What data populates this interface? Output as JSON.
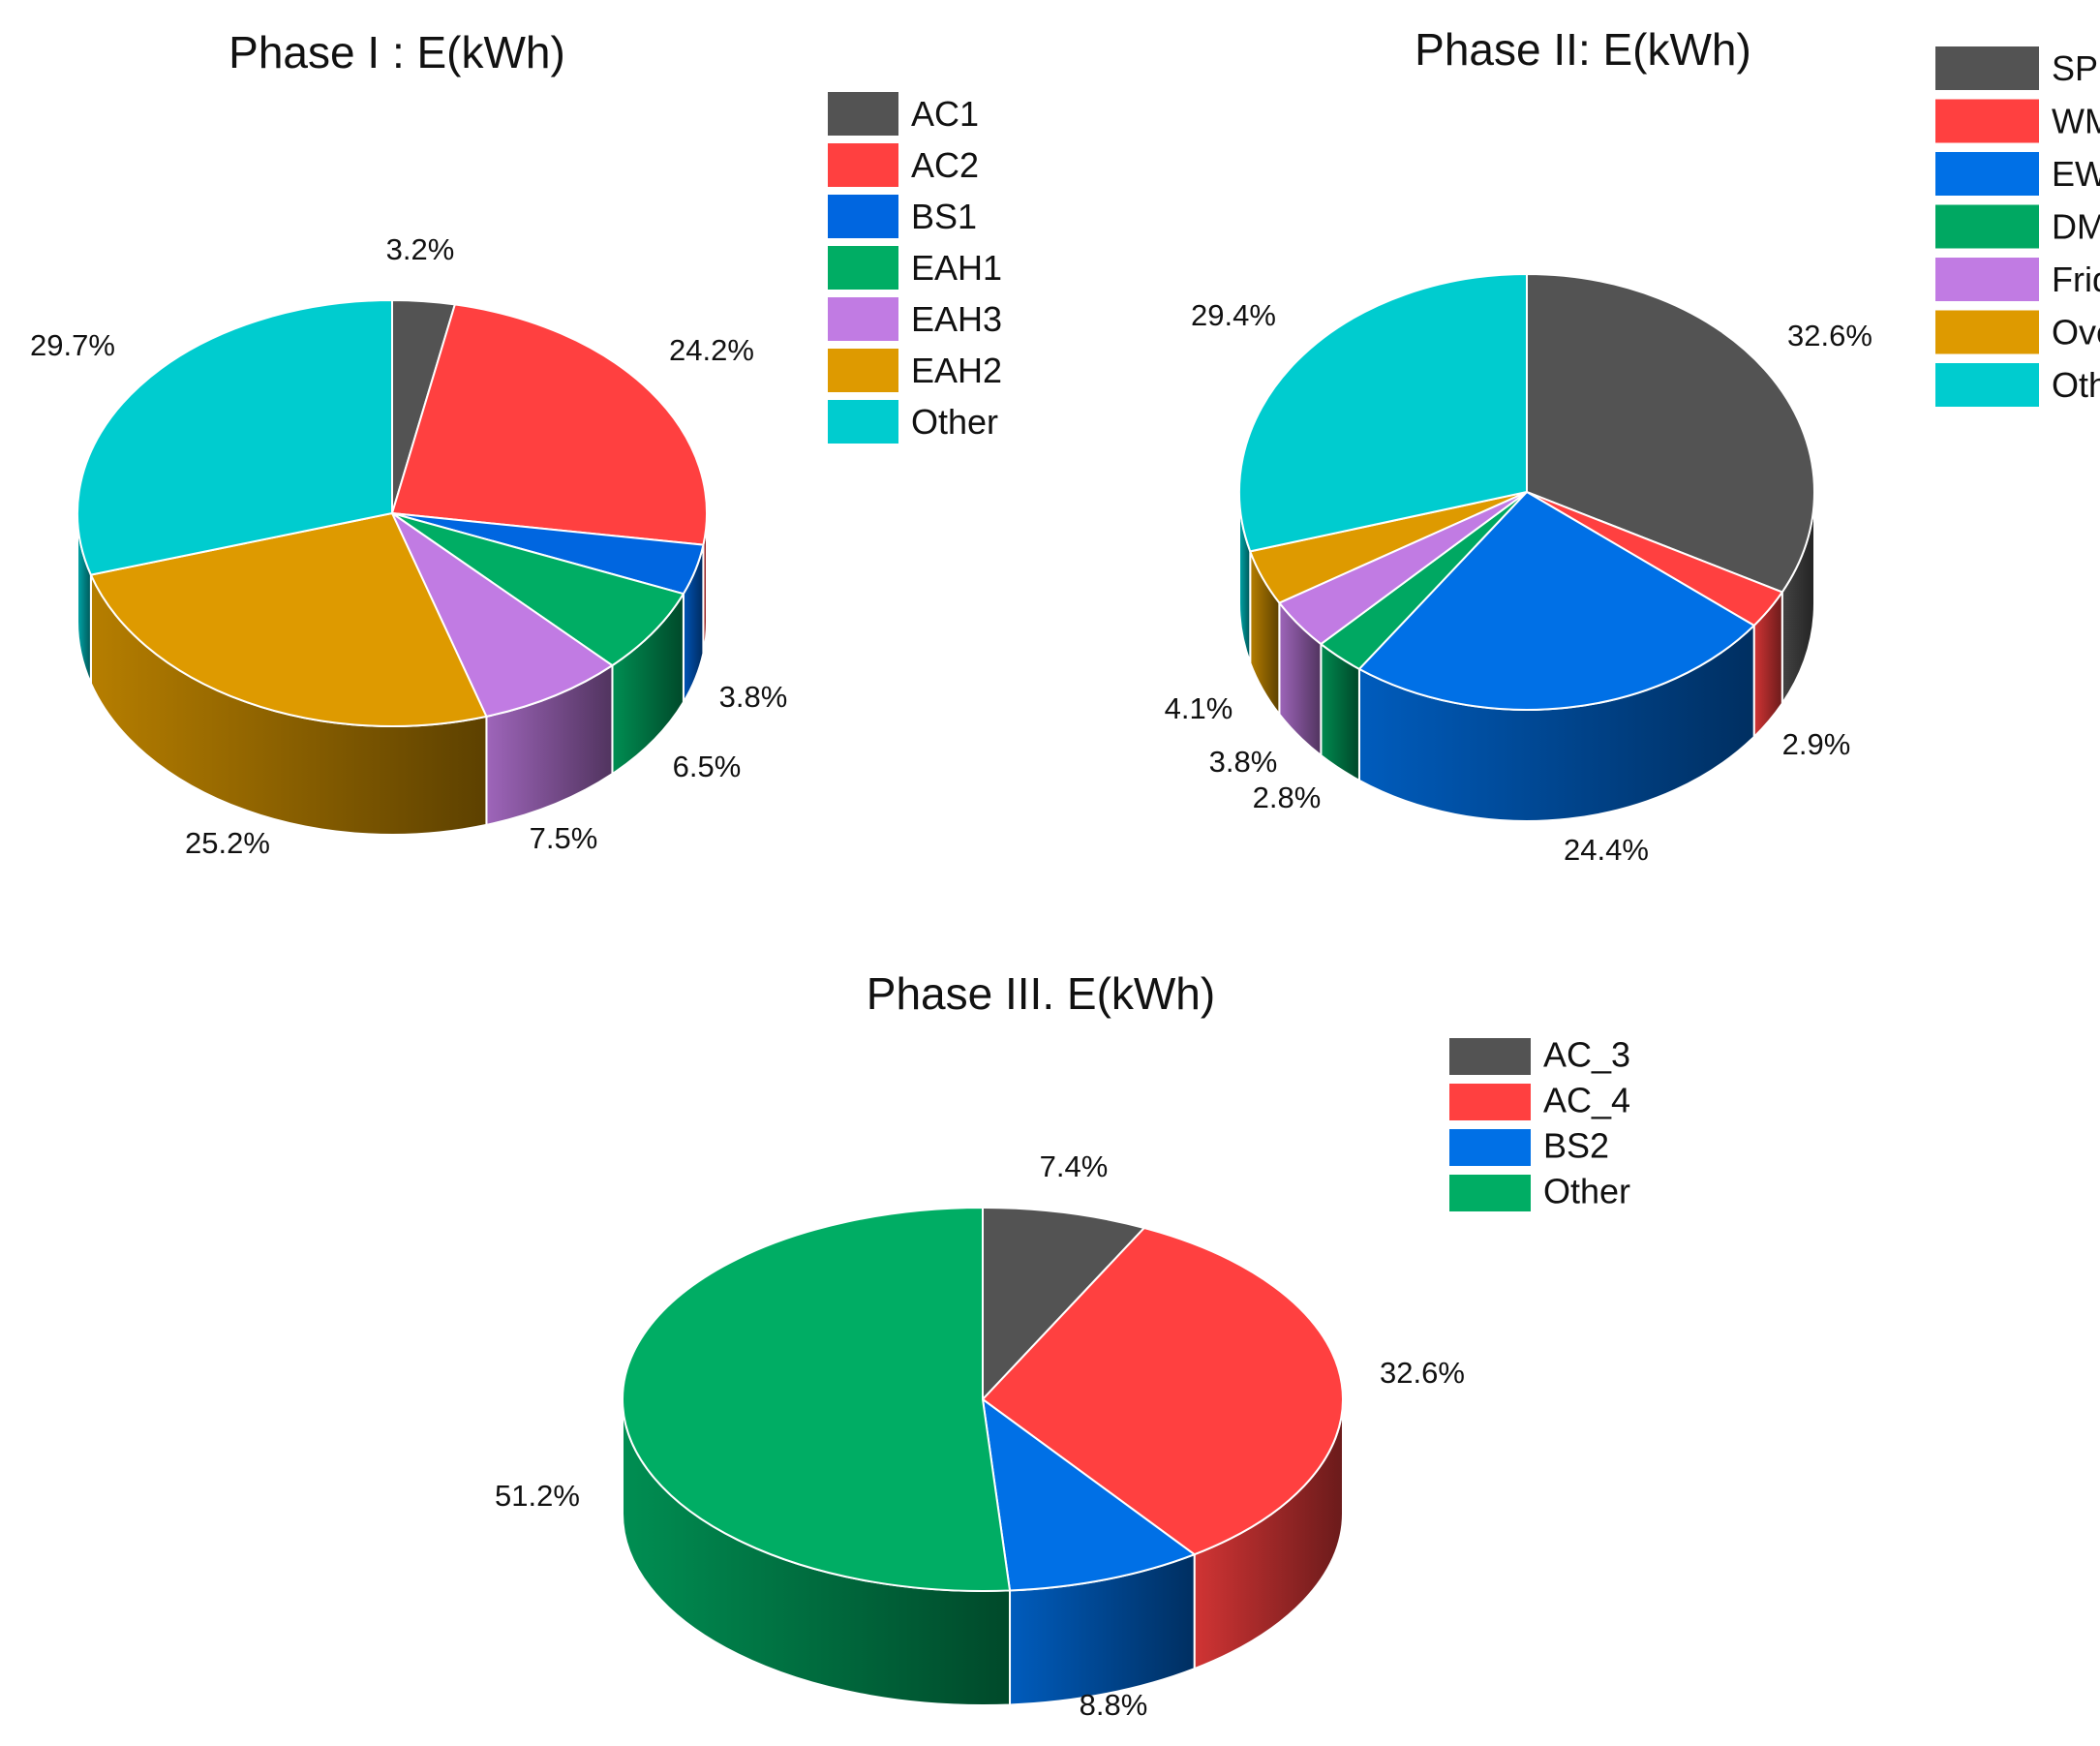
{
  "chart_data": [
    {
      "type": "pie",
      "title": "Phase I : E(kWh)",
      "categories": [
        "AC1",
        "AC2",
        "BS1",
        "EAH1",
        "EAH3",
        "EAH2",
        "Other"
      ],
      "values": [
        3.2,
        24.2,
        3.8,
        6.5,
        7.5,
        25.2,
        29.7
      ],
      "labels": [
        "3.2%",
        "24.2%",
        "3.8%",
        "6.5%",
        "7.5%",
        "25.2%",
        "29.7%"
      ],
      "colors": [
        "#535353",
        "#ff4040",
        "#0066e0",
        "#00ad64",
        "#c17be3",
        "#de9a00",
        "#00cccf"
      ],
      "legend_position": "right",
      "style": "3d"
    },
    {
      "type": "pie",
      "title": "Phase II: E(kWh)",
      "categories": [
        "SPP",
        "WM",
        "EWH",
        "DM",
        "Fridge",
        "Oven",
        "Other"
      ],
      "values": [
        32.6,
        2.9,
        24.4,
        2.8,
        3.8,
        4.1,
        29.4
      ],
      "labels": [
        "32.6%",
        "2.9%",
        "24.4%",
        "2.8%",
        "3.8%",
        "4.1%",
        "29.4%"
      ],
      "colors": [
        "#535353",
        "#ff4040",
        "#0070e6",
        "#00a862",
        "#c17be3",
        "#de9a00",
        "#00cccf"
      ],
      "legend_position": "right",
      "style": "3d"
    },
    {
      "type": "pie",
      "title": "Phase III. E(kWh)",
      "categories": [
        "AC_3",
        "AC_4",
        "BS2",
        "Other"
      ],
      "values": [
        7.4,
        32.6,
        8.8,
        51.2
      ],
      "labels": [
        "7.4%",
        "32.6%",
        "8.8%",
        "51.2%"
      ],
      "colors": [
        "#535353",
        "#ff4040",
        "#0070e6",
        "#00ad64"
      ],
      "legend_position": "right",
      "style": "3d"
    }
  ]
}
